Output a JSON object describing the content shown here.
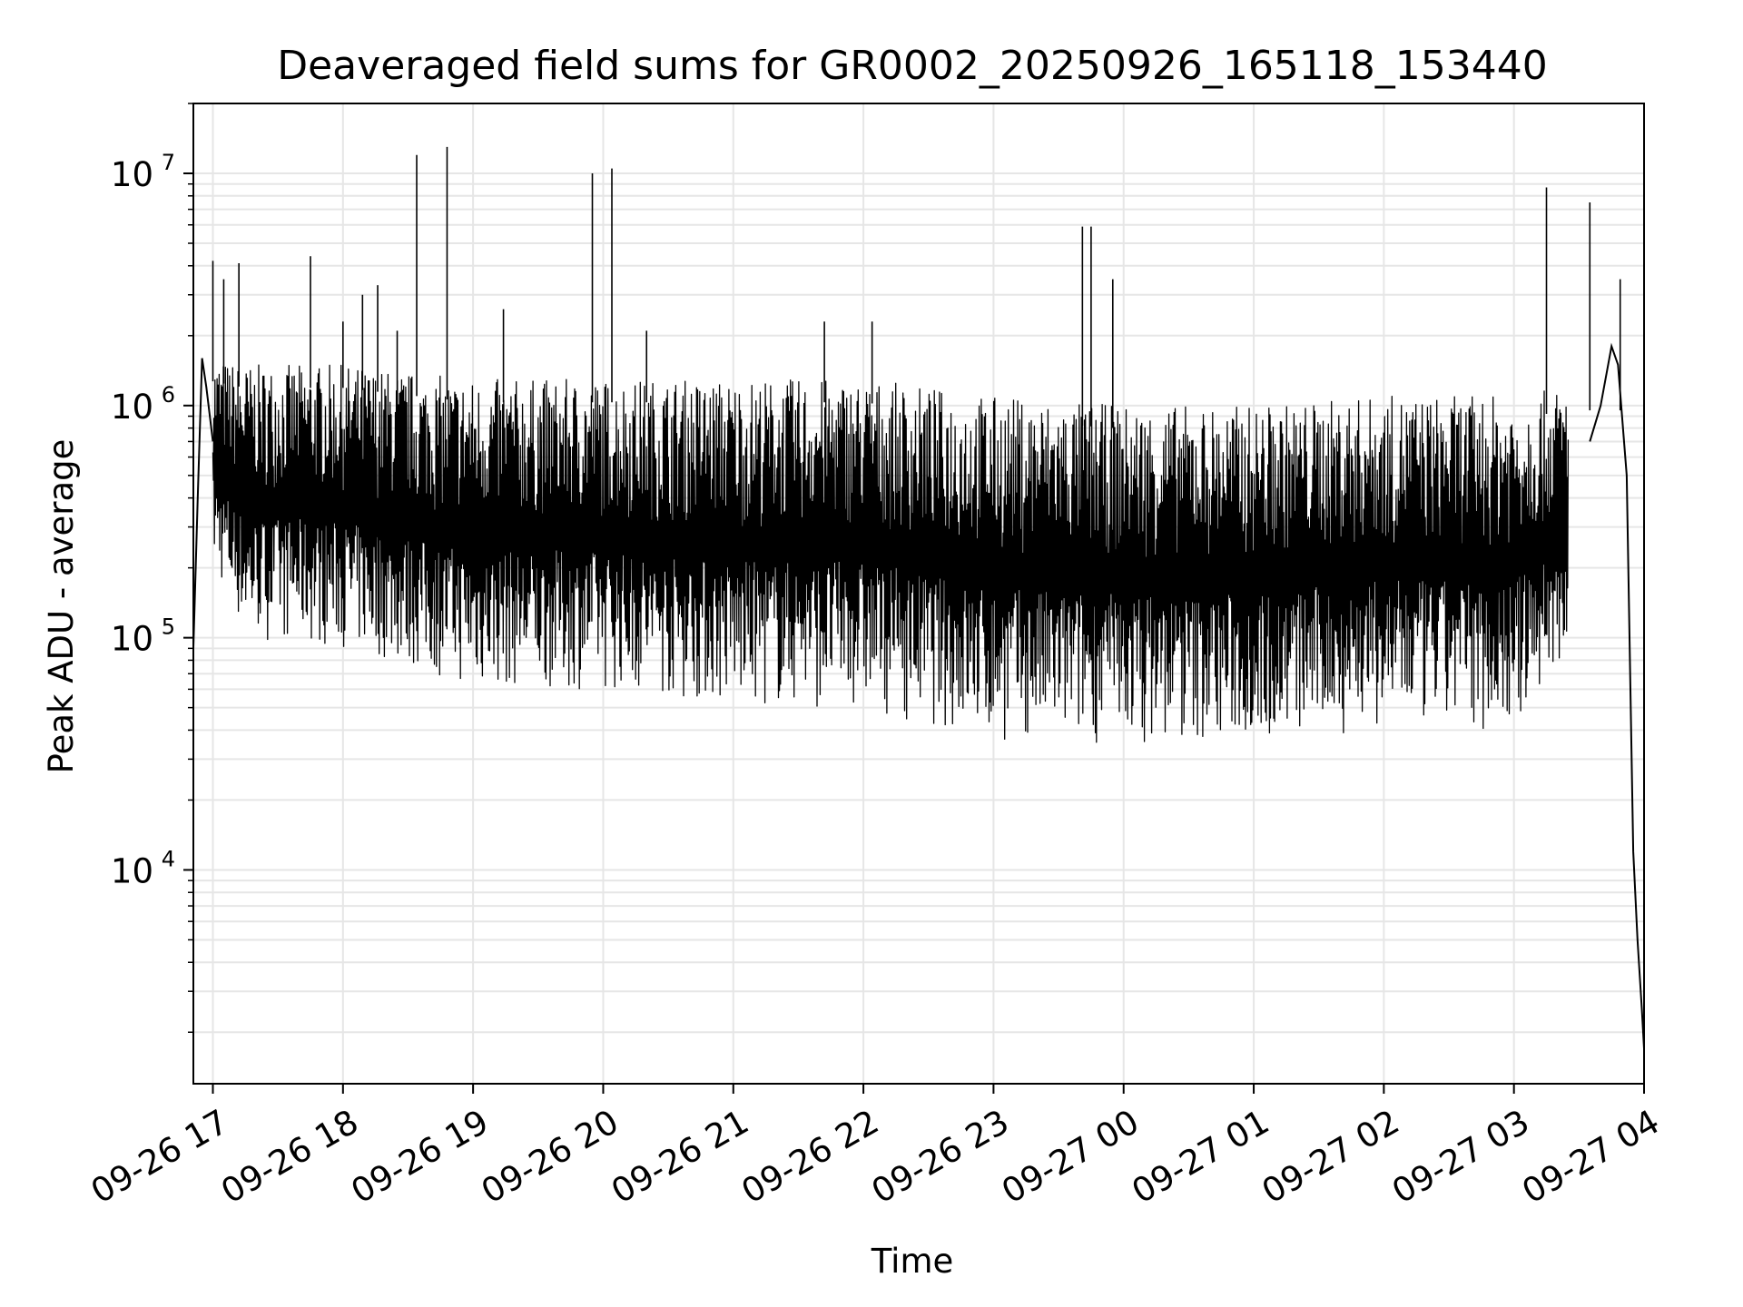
{
  "chart_data": {
    "type": "line",
    "title": "Deaveraged field sums for GR0002_20250926_165118_153440",
    "xlabel": "Time",
    "ylabel": "Peak ADU - average",
    "yscale": "log",
    "ylim": [
      1200,
      20000000
    ],
    "xlim": [
      "2025-09-26 16:51",
      "2025-09-27 04:00"
    ],
    "grid": true,
    "grid_minor": true,
    "line_color": "#000000",
    "grid_color": "#e6e6e6",
    "x_ticks": [
      {
        "time": "2025-09-26 17:00",
        "label": "09-26 17"
      },
      {
        "time": "2025-09-26 18:00",
        "label": "09-26 18"
      },
      {
        "time": "2025-09-26 19:00",
        "label": "09-26 19"
      },
      {
        "time": "2025-09-26 20:00",
        "label": "09-26 20"
      },
      {
        "time": "2025-09-26 21:00",
        "label": "09-26 21"
      },
      {
        "time": "2025-09-26 22:00",
        "label": "09-26 22"
      },
      {
        "time": "2025-09-26 23:00",
        "label": "09-26 23"
      },
      {
        "time": "2025-09-27 00:00",
        "label": "09-27 00"
      },
      {
        "time": "2025-09-27 01:00",
        "label": "09-27 01"
      },
      {
        "time": "2025-09-27 02:00",
        "label": "09-27 02"
      },
      {
        "time": "2025-09-27 03:00",
        "label": "09-27 03"
      },
      {
        "time": "2025-09-27 04:00",
        "label": "09-27 04"
      }
    ],
    "y_ticks": [
      {
        "value": 10000,
        "base": "10",
        "exp": "4"
      },
      {
        "value": 100000,
        "base": "10",
        "exp": "5"
      },
      {
        "value": 1000000,
        "base": "10",
        "exp": "6"
      },
      {
        "value": 10000000,
        "base": "10",
        "exp": "7"
      }
    ],
    "band": {
      "description": "dense noise envelope (approx.)",
      "points": [
        {
          "t": "2025-09-26 17:00",
          "lo": 200000,
          "hi": 1600000
        },
        {
          "t": "2025-09-26 17:15",
          "lo": 100000,
          "hi": 1500000
        },
        {
          "t": "2025-09-26 18:00",
          "lo": 90000,
          "hi": 1500000
        },
        {
          "t": "2025-09-26 19:00",
          "lo": 60000,
          "hi": 1300000
        },
        {
          "t": "2025-09-26 20:00",
          "lo": 60000,
          "hi": 1300000
        },
        {
          "t": "2025-09-26 21:00",
          "lo": 50000,
          "hi": 1300000
        },
        {
          "t": "2025-09-26 22:00",
          "lo": 50000,
          "hi": 1300000
        },
        {
          "t": "2025-09-26 23:00",
          "lo": 35000,
          "hi": 1100000
        },
        {
          "t": "2025-09-27 00:00",
          "lo": 35000,
          "hi": 1000000
        },
        {
          "t": "2025-09-27 01:00",
          "lo": 35000,
          "hi": 1000000
        },
        {
          "t": "2025-09-27 02:00",
          "lo": 40000,
          "hi": 1100000
        },
        {
          "t": "2025-09-27 03:00",
          "lo": 40000,
          "hi": 1100000
        },
        {
          "t": "2025-09-27 03:25",
          "lo": 80000,
          "hi": 1200000
        }
      ]
    },
    "series": [
      {
        "values_key_points": [
          {
            "t": "2025-09-26 16:51",
            "y": 90000
          },
          {
            "t": "2025-09-26 16:53",
            "y": 400000
          },
          {
            "t": "2025-09-26 16:55",
            "y": 1600000
          },
          {
            "t": "2025-09-26 16:57",
            "y": 1200000
          },
          {
            "t": "2025-09-26 17:00",
            "y": 700000
          },
          {
            "t": "2025-09-27 03:35",
            "y": 700000
          },
          {
            "t": "2025-09-27 03:40",
            "y": 1000000
          },
          {
            "t": "2025-09-27 03:45",
            "y": 1800000
          },
          {
            "t": "2025-09-27 03:48",
            "y": 1500000
          },
          {
            "t": "2025-09-27 03:52",
            "y": 500000
          },
          {
            "t": "2025-09-27 03:55",
            "y": 12000
          },
          {
            "t": "2025-09-27 03:57",
            "y": 5000
          },
          {
            "t": "2025-09-27 03:59",
            "y": 2500
          },
          {
            "t": "2025-09-27 04:00",
            "y": 1700
          }
        ],
        "spikes": [
          {
            "t": "2025-09-26 17:00",
            "y": 4200000
          },
          {
            "t": "2025-09-26 17:05",
            "y": 3500000
          },
          {
            "t": "2025-09-26 17:12",
            "y": 4100000
          },
          {
            "t": "2025-09-26 17:45",
            "y": 4400000
          },
          {
            "t": "2025-09-26 18:00",
            "y": 2300000
          },
          {
            "t": "2025-09-26 18:09",
            "y": 3000000
          },
          {
            "t": "2025-09-26 18:16",
            "y": 3300000
          },
          {
            "t": "2025-09-26 18:25",
            "y": 2100000
          },
          {
            "t": "2025-09-26 18:34",
            "y": 12000000
          },
          {
            "t": "2025-09-26 18:48",
            "y": 13000000
          },
          {
            "t": "2025-09-26 19:14",
            "y": 2600000
          },
          {
            "t": "2025-09-26 19:55",
            "y": 10000000
          },
          {
            "t": "2025-09-26 20:04",
            "y": 10500000
          },
          {
            "t": "2025-09-26 20:20",
            "y": 2100000
          },
          {
            "t": "2025-09-26 21:42",
            "y": 2300000
          },
          {
            "t": "2025-09-26 22:04",
            "y": 2300000
          },
          {
            "t": "2025-09-26 23:41",
            "y": 5900000
          },
          {
            "t": "2025-09-26 23:45",
            "y": 5900000
          },
          {
            "t": "2025-09-26 23:55",
            "y": 3500000
          },
          {
            "t": "2025-09-27 03:15",
            "y": 8700000
          },
          {
            "t": "2025-09-27 03:35",
            "y": 7500000
          },
          {
            "t": "2025-09-27 03:49",
            "y": 3500000
          }
        ]
      }
    ]
  }
}
